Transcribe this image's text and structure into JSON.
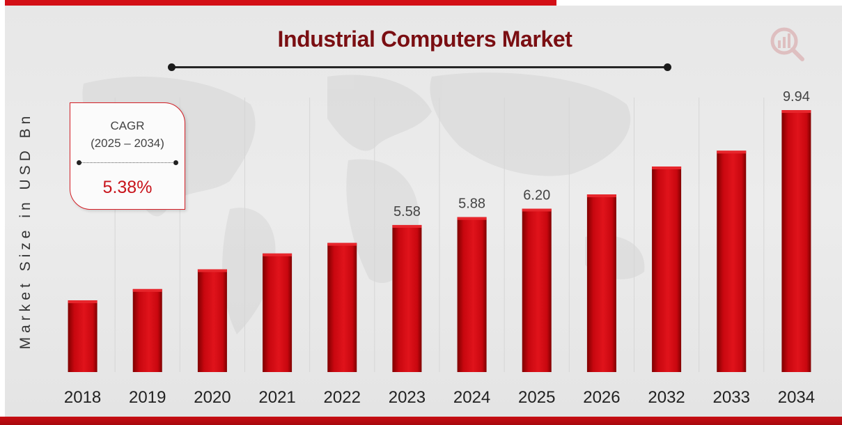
{
  "colors": {
    "bar": "#c8070f",
    "bar_dark": "#7f0000",
    "title": "#7a0e12",
    "accent": "#d30f16",
    "text": "#333333",
    "background": "#ebebeb"
  },
  "header": {
    "title": "Industrial Computers Market"
  },
  "cagr": {
    "title": "CAGR",
    "period": "(2025 – 2034)",
    "value": "5.38%"
  },
  "logo": {
    "icon": "magnifier-bar-chart-icon"
  },
  "chart_data": {
    "type": "bar",
    "title": "Industrial Computers Market",
    "xlabel": "",
    "ylabel": "Market Size in USD Bn",
    "categories": [
      "2018",
      "2019",
      "2020",
      "2021",
      "2022",
      "2023",
      "2024",
      "2025",
      "2026",
      "2032",
      "2033",
      "2034"
    ],
    "values": [
      2.72,
      3.15,
      3.9,
      4.5,
      4.9,
      5.58,
      5.88,
      6.2,
      6.74,
      7.8,
      8.4,
      9.94
    ],
    "data_labels": [
      "",
      "",
      "",
      "",
      "",
      "5.58",
      "5.88",
      "6.20",
      "",
      "",
      "",
      "9.94"
    ],
    "ylim": [
      0,
      10.1
    ],
    "grid": true,
    "legend": "none"
  }
}
